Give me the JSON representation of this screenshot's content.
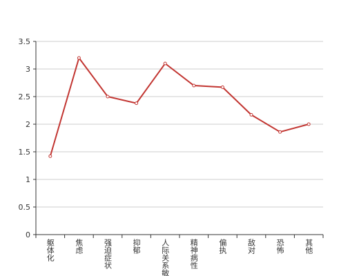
{
  "chart_data": {
    "type": "line",
    "categories": [
      "躯体化",
      "焦虑",
      "强迫症状",
      "抑郁",
      "人际关系敏感",
      "精神病性",
      "偏执",
      "敌对",
      "恐怖",
      "其他"
    ],
    "series": [
      {
        "color": "#c23531",
        "values": [
          1.42,
          3.2,
          2.5,
          2.38,
          3.1,
          2.7,
          2.67,
          2.17,
          1.86,
          2.0
        ]
      }
    ],
    "ylim": [
      0,
      3.5
    ],
    "yticks": [
      0,
      0.5,
      1,
      1.5,
      2,
      2.5,
      3,
      3.5
    ],
    "grid": true
  }
}
